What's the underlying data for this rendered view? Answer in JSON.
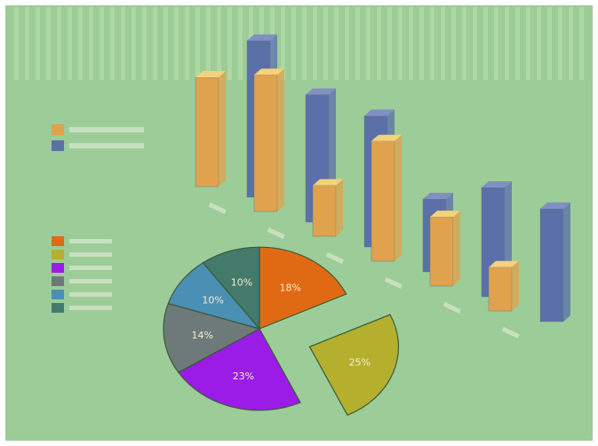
{
  "colors": {
    "background": "#9ccc98",
    "stripe": "#b3d9a8",
    "orange_bar": "#e0a24c",
    "orange_top": "#f4d27a",
    "blue_bar": "#5b6fa8",
    "blue_top": "#8090c0"
  },
  "chart_data": [
    {
      "type": "bar",
      "categories": [
        "",
        "",
        "",
        "",
        "",
        ""
      ],
      "series": [
        {
          "name": "",
          "color": "#e0a24c",
          "values": [
            60,
            75,
            28,
            66,
            38,
            24
          ]
        },
        {
          "name": "",
          "color": "#5b6fa8",
          "values": [
            86,
            70,
            72,
            40,
            60,
            62
          ]
        }
      ],
      "legend_position": "left"
    },
    {
      "type": "pie",
      "slices": [
        {
          "label": "",
          "color": "#e06a14",
          "value": 18,
          "text": "18%"
        },
        {
          "label": "",
          "color": "#b4b02e",
          "value": 25,
          "text": "25%"
        },
        {
          "label": "",
          "color": "#9a1ce6",
          "value": 23,
          "text": "23%"
        },
        {
          "label": "",
          "color": "#6e7a7a",
          "value": 14,
          "text": "14%"
        },
        {
          "label": "",
          "color": "#4a8fb4",
          "value": 10,
          "text": "10%"
        },
        {
          "label": "",
          "color": "#447a6a",
          "value": 10,
          "text": "10%"
        }
      ],
      "exploded_slice": 1,
      "legend_position": "left"
    }
  ]
}
